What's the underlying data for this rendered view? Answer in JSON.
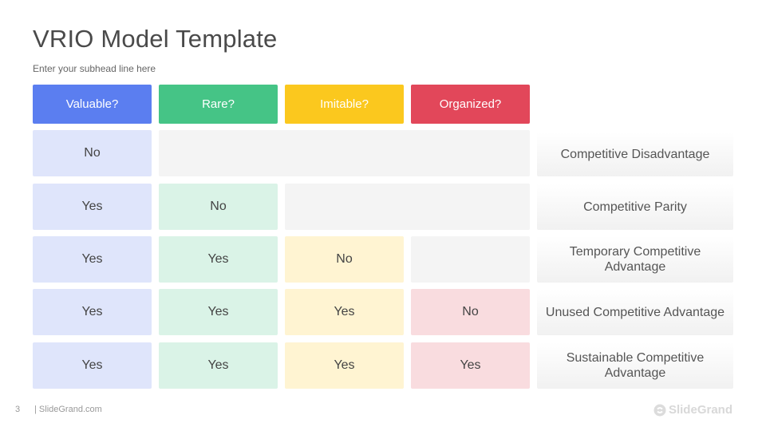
{
  "title": "VRIO Model Template",
  "subtitle": "Enter your subhead line here",
  "headers": [
    {
      "label": "Valuable?",
      "color": "#5b7ef0"
    },
    {
      "label": "Rare?",
      "color": "#45c486"
    },
    {
      "label": "Imitable?",
      "color": "#fbc81e"
    },
    {
      "label": "Organized?",
      "color": "#e2475a"
    }
  ],
  "tints": [
    "#dfe5fb",
    "#daf3e7",
    "#fff4d2",
    "#f9dcdf"
  ],
  "rows": [
    {
      "values": [
        "No"
      ],
      "outcome": "Competitive Disadvantage"
    },
    {
      "values": [
        "Yes",
        "No"
      ],
      "outcome": "Competitive Parity"
    },
    {
      "values": [
        "Yes",
        "Yes",
        "No"
      ],
      "outcome": "Temporary Competitive Advantage"
    },
    {
      "values": [
        "Yes",
        "Yes",
        "Yes",
        "No"
      ],
      "outcome": "Unused Competitive Advantage"
    },
    {
      "values": [
        "Yes",
        "Yes",
        "Yes",
        "Yes"
      ],
      "outcome": "Sustainable Competitive Advantage"
    }
  ],
  "footer": {
    "page_number": "3",
    "site": "| SlideGrand.com",
    "logo_text": "SlideGrand",
    "logo_icon": "slidegrand-logo-icon"
  }
}
